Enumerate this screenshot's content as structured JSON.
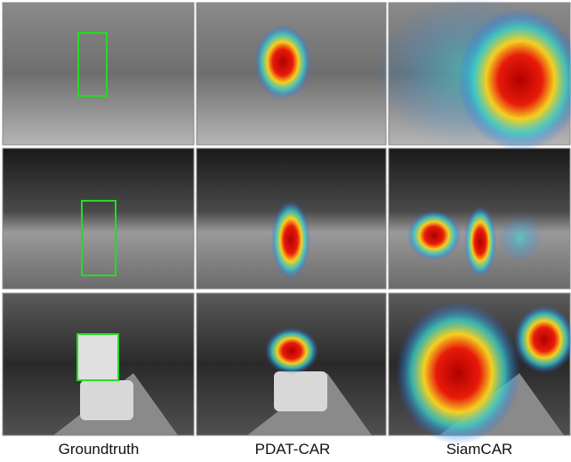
{
  "figure": {
    "columns": [
      "Groundtruth",
      "PDAT-CAR",
      "SiamCAR"
    ]
  }
}
